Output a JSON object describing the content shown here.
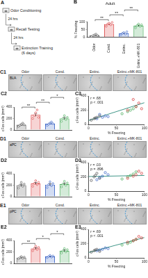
{
  "schematic": {
    "panel": "A",
    "steps": [
      "Odor Conditioning",
      "Recall Testing",
      "Extinction Training"
    ],
    "intervals": [
      "24 hrs",
      "24 hrs"
    ],
    "duration": "(6 days)"
  },
  "images": [
    {
      "panel": "C1",
      "region": "BLA",
      "labels": [
        "Odor",
        "Cond.",
        "Extinc.",
        "Extinc.+MK-801"
      ]
    },
    {
      "panel": "D1",
      "region": "aPC",
      "labels": [
        "Odor",
        "Cond.",
        "Extinc.",
        "Extinc.+MK-801"
      ]
    },
    {
      "panel": "E1",
      "region": "pPC",
      "labels": [
        "Odor",
        "Cond.",
        "Extinc.",
        "Extinc.+MK-801"
      ]
    }
  ],
  "chart_data": [
    {
      "panel": "B",
      "type": "bar",
      "title": "Adult",
      "categories": [
        "Odor",
        "Cond.",
        "Extinc.",
        "Extinc.+MK-801"
      ],
      "values": [
        12,
        84,
        25,
        74
      ],
      "errors": [
        3,
        4,
        4,
        4
      ],
      "points": [
        [
          5,
          10,
          15,
          20,
          12
        ],
        [
          70,
          85,
          90,
          80,
          95
        ],
        [
          15,
          25,
          30,
          20,
          35
        ],
        [
          60,
          75,
          85,
          70,
          80
        ]
      ],
      "colors": [
        "#444444",
        "#d62728",
        "#1f4fbf",
        "#2a9d3f"
      ],
      "ylabel": "% Freezing",
      "ylim": [
        0,
        100
      ],
      "yticks": [
        0,
        50,
        100
      ],
      "grid": false,
      "annotations": [
        {
          "text": "**",
          "between": [
            0,
            1
          ]
        },
        {
          "text": "**",
          "between": [
            1,
            2
          ]
        },
        {
          "text": "**",
          "between": [
            2,
            3
          ]
        }
      ]
    },
    {
      "panel": "C2",
      "type": "bar",
      "categories": [
        null,
        null,
        null,
        null
      ],
      "tick_labels": "y",
      "values": [
        90,
        264,
        110,
        200
      ],
      "errors": [
        10,
        27,
        10,
        17
      ],
      "points": [
        [
          60,
          80,
          100,
          120,
          90
        ],
        [
          200,
          250,
          300,
          350,
          220
        ],
        [
          80,
          100,
          120,
          140,
          110
        ],
        [
          150,
          200,
          250,
          180,
          220
        ]
      ],
      "colors": [
        "#444444",
        "#d62728",
        "#1f4fbf",
        "#2a9d3f"
      ],
      "ylabel": "cFos cells (mm²)",
      "ylim": [
        0,
        400
      ],
      "yticks": [
        0,
        200,
        400
      ],
      "grid": false,
      "annotations": [
        {
          "text": "**",
          "between": [
            0,
            1
          ]
        },
        {
          "text": "**",
          "between": [
            1,
            2
          ]
        },
        {
          "text": "*",
          "between": [
            2,
            3
          ]
        }
      ]
    },
    {
      "panel": "C3",
      "type": "scatter",
      "marker": "open_circle",
      "series": [
        {
          "color": "#444444",
          "x": [
            5,
            10,
            15,
            20,
            12
          ],
          "values": [
            60,
            80,
            100,
            120,
            90
          ]
        },
        {
          "color": "#d62728",
          "x": [
            70,
            85,
            90,
            80,
            95
          ],
          "values": [
            200,
            250,
            300,
            350,
            220
          ]
        },
        {
          "color": "#1f4fbf",
          "x": [
            15,
            25,
            30,
            20,
            35
          ],
          "values": [
            80,
            100,
            120,
            140,
            110
          ]
        },
        {
          "color": "#2a9d3f",
          "x": [
            60,
            75,
            85,
            70,
            80
          ],
          "values": [
            150,
            200,
            250,
            180,
            220
          ]
        }
      ],
      "trend_line": {
        "color": "#2a8a7a",
        "x": [
          0,
          100
        ],
        "values": [
          55,
          305
        ]
      },
      "xlabel": "% Freezing",
      "ylabel": "cFos cells (mm²)",
      "xlim": [
        0,
        100
      ],
      "xticks": [
        0,
        50,
        100
      ],
      "ylim": [
        0,
        400
      ],
      "yticks": [
        0,
        200,
        400
      ],
      "grid": false,
      "annotations": [
        {
          "text": "r = .68"
        },
        {
          "text": "p < .001"
        }
      ]
    },
    {
      "panel": "D2",
      "type": "bar",
      "categories": [
        null,
        null,
        null,
        null
      ],
      "tick_labels": "y",
      "values": [
        200,
        230,
        210,
        220
      ],
      "errors": [
        17,
        17,
        17,
        17
      ],
      "points": [
        [
          150,
          200,
          250,
          180,
          220
        ],
        [
          180,
          230,
          280,
          210,
          250
        ],
        [
          160,
          210,
          260,
          190,
          230
        ],
        [
          170,
          220,
          270,
          200,
          240
        ]
      ],
      "colors": [
        "#444444",
        "#d62728",
        "#1f4fbf",
        "#2a9d3f"
      ],
      "ylabel": "cFos cells (mm²)",
      "ylim": [
        0,
        400
      ],
      "yticks": [
        0,
        200,
        400
      ],
      "grid": false
    },
    {
      "panel": "D3",
      "type": "scatter",
      "marker": "open_circle",
      "series": [
        {
          "color": "#444444",
          "x": [
            5,
            10,
            15,
            20,
            12
          ],
          "values": [
            150,
            200,
            250,
            180,
            220
          ]
        },
        {
          "color": "#d62728",
          "x": [
            70,
            85,
            90,
            80,
            95
          ],
          "values": [
            180,
            230,
            280,
            210,
            250
          ]
        },
        {
          "color": "#1f4fbf",
          "x": [
            15,
            25,
            30,
            20,
            35
          ],
          "values": [
            160,
            210,
            260,
            190,
            230
          ]
        },
        {
          "color": "#2a9d3f",
          "x": [
            60,
            75,
            85,
            70,
            80
          ],
          "values": [
            170,
            220,
            270,
            200,
            240
          ]
        }
      ],
      "trend_line": {
        "color": "#2a8a7a",
        "x": [
          0,
          100
        ],
        "values": [
          205,
          220
        ]
      },
      "xlabel": "% Freezing",
      "ylabel": "cFos cells (mm²)",
      "xlim": [
        0,
        100
      ],
      "xticks": [
        0,
        50,
        100
      ],
      "ylim": [
        0,
        400
      ],
      "yticks": [
        0,
        200,
        400
      ],
      "grid": false,
      "annotations": [
        {
          "text": "r = .03"
        },
        {
          "text": "p = .896"
        }
      ]
    },
    {
      "panel": "E2",
      "type": "bar",
      "categories": [
        null,
        null,
        null,
        null
      ],
      "tick_labels": "y",
      "values": [
        100,
        260,
        120,
        220
      ],
      "errors": [
        7,
        14,
        7,
        14
      ],
      "points": [
        [
          80,
          100,
          120,
          90,
          110
        ],
        [
          220,
          260,
          300,
          240,
          280
        ],
        [
          100,
          120,
          140,
          110,
          130
        ],
        [
          180,
          220,
          260,
          200,
          240
        ]
      ],
      "colors": [
        "#444444",
        "#d62728",
        "#1f4fbf",
        "#2a9d3f"
      ],
      "ylabel": "cFos cells (mm²)",
      "ylim": [
        0,
        400
      ],
      "yticks": [
        0,
        200,
        400
      ],
      "grid": false,
      "annotations": [
        {
          "text": "**",
          "between": [
            0,
            1
          ]
        },
        {
          "text": "*",
          "between": [
            1,
            2
          ]
        },
        {
          "text": "*",
          "between": [
            2,
            3
          ]
        }
      ]
    },
    {
      "panel": "E3",
      "type": "scatter",
      "marker": "open_circle",
      "series": [
        {
          "color": "#444444",
          "x": [
            5,
            10,
            15,
            20,
            12
          ],
          "values": [
            80,
            100,
            120,
            90,
            110
          ]
        },
        {
          "color": "#d62728",
          "x": [
            70,
            85,
            90,
            80,
            95
          ],
          "values": [
            220,
            260,
            300,
            240,
            280
          ]
        },
        {
          "color": "#1f4fbf",
          "x": [
            15,
            25,
            30,
            20,
            35
          ],
          "values": [
            100,
            120,
            140,
            110,
            130
          ]
        },
        {
          "color": "#2a9d3f",
          "x": [
            60,
            75,
            85,
            70,
            80
          ],
          "values": [
            180,
            220,
            260,
            200,
            240
          ]
        }
      ],
      "trend_line": {
        "color": "#2a8a7a",
        "x": [
          0,
          100
        ],
        "values": [
          75,
          285
        ]
      },
      "xlabel": "% Freezing",
      "ylabel": "cFos cells (mm²)",
      "xlim": [
        0,
        100
      ],
      "xticks": [
        0,
        50,
        100
      ],
      "ylim": [
        0,
        400
      ],
      "yticks": [
        0,
        200,
        400
      ],
      "grid": false,
      "annotations": [
        {
          "text": "r = .69"
        },
        {
          "text": "p < .001"
        }
      ]
    }
  ]
}
